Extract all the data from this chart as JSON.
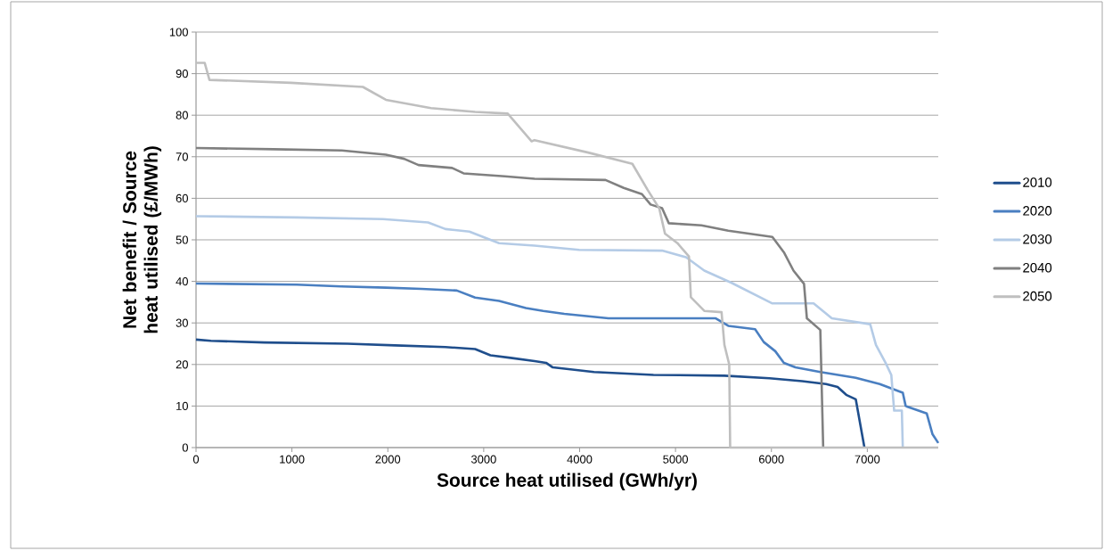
{
  "chart_data": {
    "type": "line",
    "xlabel": "Source heat utilised (GWh/yr)",
    "ylabel": "Net benefit / Source heat utilised (£/MWh)",
    "xlim": [
      0,
      7740
    ],
    "ylim": [
      0,
      100
    ],
    "xticks": [
      0,
      1000,
      2000,
      3000,
      4000,
      5000,
      6000,
      7000
    ],
    "yticks": [
      0,
      10,
      20,
      30,
      40,
      50,
      60,
      70,
      80,
      90,
      100
    ],
    "grid": "y",
    "legend": "right",
    "line_style": "solid",
    "marker": "none",
    "series": [
      {
        "name": "2010",
        "color": "#1f4e8c",
        "x": [
          0,
          155,
          713,
          1580,
          2075,
          2600,
          2910,
          3070,
          3280,
          3530,
          3650,
          3720,
          4150,
          4770,
          5510,
          5980,
          6320,
          6570,
          6690,
          6780,
          6880,
          6970
        ],
        "values": [
          26.0,
          25.7,
          25.3,
          25.0,
          24.6,
          24.2,
          23.7,
          22.2,
          21.6,
          20.8,
          20.4,
          19.3,
          18.2,
          17.5,
          17.3,
          16.7,
          16.0,
          15.3,
          14.6,
          12.7,
          11.6,
          0
        ]
      },
      {
        "name": "2020",
        "color": "#4a7fc1",
        "x": [
          0,
          1050,
          1515,
          1980,
          2350,
          2720,
          2910,
          3160,
          3440,
          3620,
          3840,
          4300,
          5420,
          5550,
          5830,
          5920,
          6040,
          6130,
          6250,
          6510,
          6880,
          7130,
          7370,
          7400,
          7620,
          7680,
          7740
        ],
        "values": [
          39.5,
          39.2,
          38.8,
          38.5,
          38.2,
          37.8,
          36.1,
          35.3,
          33.6,
          32.9,
          32.2,
          31.1,
          31.1,
          29.3,
          28.5,
          25.4,
          23.2,
          20.4,
          19.3,
          18.2,
          16.8,
          15.3,
          13.2,
          10.0,
          8.2,
          3.2,
          1.1
        ]
      },
      {
        "name": "2030",
        "color": "#b4cbe6",
        "x": [
          0,
          1050,
          1950,
          2420,
          2600,
          2850,
          3160,
          3530,
          3995,
          4860,
          5110,
          5300,
          5580,
          6010,
          6440,
          6630,
          7030,
          7090,
          7190,
          7250,
          7280,
          7360,
          7370
        ],
        "values": [
          55.7,
          55.4,
          55.0,
          54.2,
          52.6,
          52.0,
          49.2,
          48.6,
          47.6,
          47.4,
          45.8,
          42.6,
          39.7,
          34.7,
          34.7,
          31.1,
          29.7,
          24.7,
          20.4,
          17.5,
          8.9,
          8.9,
          0
        ]
      },
      {
        "name": "2040",
        "color": "#808080",
        "x": [
          0,
          810,
          1520,
          1980,
          2170,
          2320,
          2670,
          2790,
          3220,
          3530,
          4270,
          4460,
          4650,
          4740,
          4860,
          4930,
          5270,
          5550,
          6010,
          6130,
          6230,
          6340,
          6370,
          6510,
          6540
        ],
        "values": [
          72.1,
          71.8,
          71.5,
          70.5,
          69.5,
          68.0,
          67.3,
          66.0,
          65.3,
          64.7,
          64.4,
          62.5,
          61.0,
          58.5,
          57.6,
          54.0,
          53.5,
          52.2,
          50.7,
          47.0,
          42.6,
          39.4,
          31.1,
          28.3,
          0
        ]
      },
      {
        "name": "2050",
        "color": "#bfbfbf",
        "x": [
          0,
          90,
          140,
          990,
          1740,
          1980,
          2450,
          2910,
          3250,
          3500,
          3530,
          4090,
          4550,
          4710,
          4830,
          4890,
          5020,
          5140,
          5160,
          5300,
          5480,
          5510,
          5560,
          5570,
          7740
        ],
        "values": [
          92.6,
          92.6,
          88.5,
          87.8,
          86.8,
          83.7,
          81.7,
          80.8,
          80.4,
          73.7,
          74.0,
          71.0,
          68.3,
          62.0,
          57.6,
          51.5,
          49.2,
          46.0,
          36.2,
          32.9,
          32.6,
          24.7,
          20.0,
          0,
          0
        ]
      }
    ]
  }
}
